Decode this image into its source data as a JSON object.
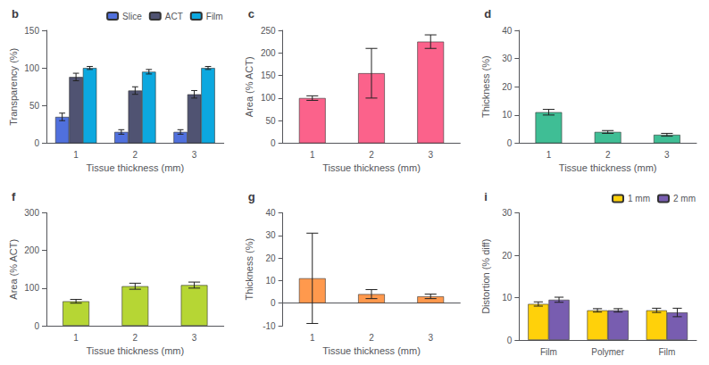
{
  "chart_data": [
    {
      "type": "bar",
      "title": "b",
      "categories": [
        1,
        2,
        3
      ],
      "xlabel": "Tissue thickness (mm)",
      "ylabel": "Transparency (%)",
      "series": [
        {
          "name": "Slice",
          "values": [
            35,
            15,
            15
          ],
          "errors": [
            5,
            3,
            3
          ]
        },
        {
          "name": "ACT",
          "values": [
            88,
            70,
            65
          ],
          "errors": [
            5,
            5,
            5
          ]
        },
        {
          "name": "Film",
          "values": [
            100,
            95,
            100
          ],
          "errors": [
            2,
            3,
            2
          ]
        }
      ],
      "ylim": [
        0,
        150
      ],
      "yticks": [
        0,
        50,
        100,
        150
      ],
      "legend": "upper right",
      "grid": false
    },
    {
      "type": "bar",
      "title": "c",
      "categories": [
        1,
        2,
        3
      ],
      "xlabel": "Tissue thickness (mm)",
      "ylabel": "Area (% ACT)",
      "values": [
        100,
        155,
        225
      ],
      "errors": [
        5,
        55,
        15
      ],
      "ylim": [
        0,
        250
      ],
      "yticks": [
        0,
        50,
        100,
        150,
        200,
        250
      ],
      "grid": false
    },
    {
      "type": "bar",
      "title": "d",
      "categories": [
        1,
        2,
        3
      ],
      "xlabel": "Tissue thickness (mm)",
      "ylabel": "Thickness (%)",
      "values": [
        11,
        4,
        3
      ],
      "errors": [
        1,
        0.5,
        0.5
      ],
      "ylim": [
        0,
        40
      ],
      "yticks": [
        0,
        10,
        20,
        30,
        40
      ],
      "grid": false
    },
    {
      "type": "bar",
      "title": "f",
      "categories": [
        1,
        2,
        3
      ],
      "xlabel": "Tissue thickness (mm)",
      "ylabel": "Area (% ACT)",
      "values": [
        65,
        105,
        108
      ],
      "errors": [
        5,
        8,
        8
      ],
      "ylim": [
        0,
        300
      ],
      "yticks": [
        0,
        100,
        200,
        300
      ],
      "grid": false
    },
    {
      "type": "bar",
      "title": "g",
      "categories": [
        1,
        2,
        3
      ],
      "xlabel": "Tissue thickness (mm)",
      "ylabel": "Thickness (%)",
      "values": [
        11,
        4,
        3
      ],
      "errors": [
        20,
        2,
        1
      ],
      "ylim": [
        -10,
        40
      ],
      "yticks": [
        -10,
        0,
        10,
        20,
        30,
        40
      ],
      "grid": false
    },
    {
      "type": "bar",
      "title": "i",
      "categories": [
        "Film",
        "Polymer",
        "Film"
      ],
      "ylabel": "Distortion (% diff)",
      "series": [
        {
          "name": "1 mm",
          "values": [
            8.5,
            7.0,
            7.0
          ],
          "errors": [
            0.5,
            0.4,
            0.5
          ]
        },
        {
          "name": "2 mm",
          "values": [
            9.5,
            7.0,
            6.5
          ],
          "errors": [
            0.6,
            0.4,
            1.0
          ]
        }
      ],
      "ylim": [
        0,
        30
      ],
      "yticks": [
        0,
        10,
        20,
        30
      ],
      "legend": "upper right",
      "grid": false
    }
  ]
}
